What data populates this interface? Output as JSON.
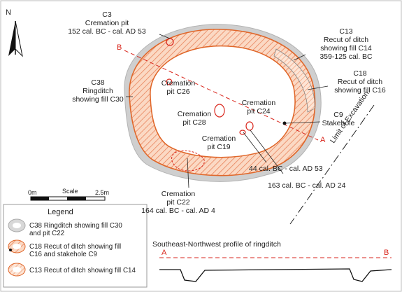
{
  "north": "N",
  "section_markers": {
    "b": "B",
    "a": "A"
  },
  "features": {
    "c3": [
      "C3",
      "Cremation pit",
      "152 cal. BC - cal. AD 53"
    ],
    "c13": [
      "C13",
      "Recut of ditch",
      "showing fill C14",
      "359-125 cal. BC"
    ],
    "c38": [
      "C38",
      "Ringditch",
      "showing fill C30"
    ],
    "c18": [
      "C18",
      "Recut of ditch",
      "showing fill C16"
    ],
    "c26": [
      "Cremation",
      "pit C26"
    ],
    "c24": [
      "Cremation",
      "pit C24"
    ],
    "c28": [
      "Cremation",
      "pit C28"
    ],
    "c9": [
      "C9",
      "Stakehole"
    ],
    "c19": [
      "Cremation",
      "pit C19"
    ],
    "c22": [
      "Cremation",
      "pit C22",
      "164 cal. BC - cal. AD 4"
    ],
    "date_c19": "44 cal. BC - cal. AD 53",
    "date_c24": "163 cal. BC - cal. AD 24"
  },
  "limit_label": "Limit of Excavation",
  "scale": {
    "title": "Scale",
    "start": "0m",
    "end": "2.5m"
  },
  "legend": {
    "title": "Legend",
    "items": [
      [
        "C38 Ringditch showing fill C30",
        "and pit C22"
      ],
      [
        "C18 Recut of ditch showing fill",
        "C16 and stakehole C9"
      ],
      [
        "C13 Recut of ditch showing fill C14"
      ]
    ]
  },
  "profile": {
    "title": "Southeast-Northwest profile of ringditch",
    "left": "A",
    "right": "B"
  },
  "colors": {
    "orange": "#e0672a",
    "hatch": "#f2a582",
    "grey": "#c9c9c9",
    "red": "#d9261c"
  }
}
